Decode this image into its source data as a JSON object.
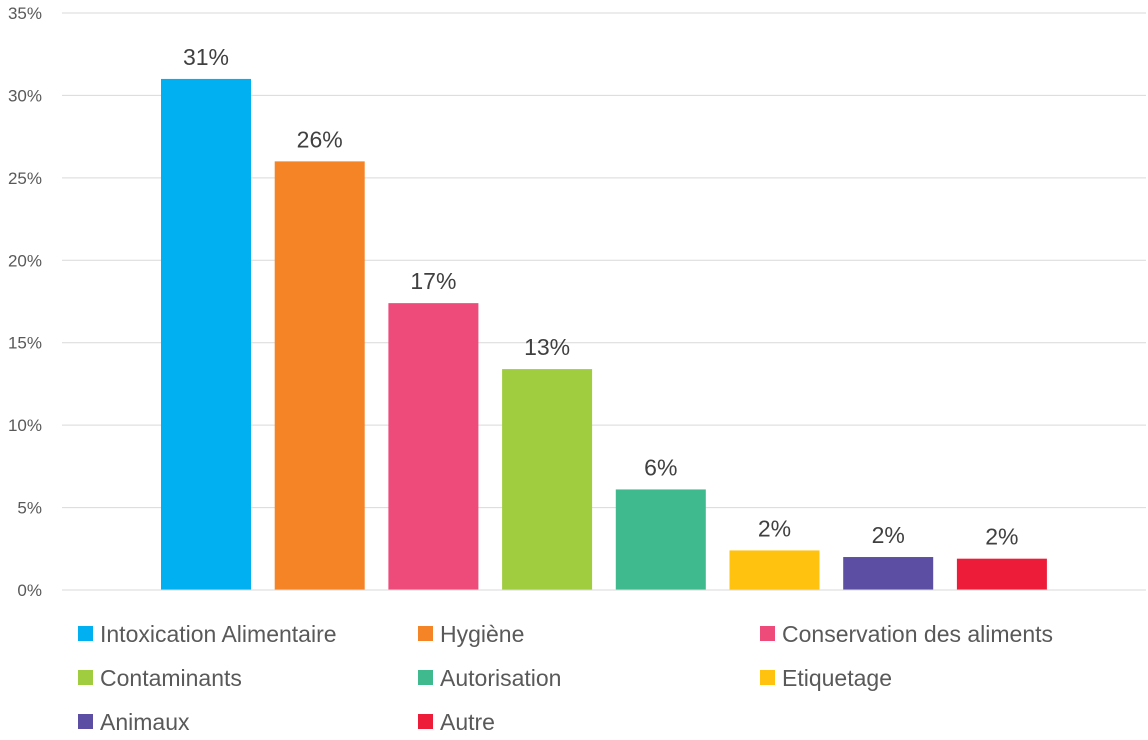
{
  "chart_data": {
    "type": "bar",
    "categories": [
      "Intoxication Alimentaire",
      "Hygiène",
      "Conservation des aliments",
      "Contaminants",
      "Autorisation",
      "Etiquetage",
      "Animaux",
      "Autre"
    ],
    "values": [
      31,
      26,
      17.4,
      13.4,
      6.1,
      2.4,
      2.0,
      1.9
    ],
    "data_labels": [
      "31%",
      "26%",
      "17%",
      "13%",
      "6%",
      "2%",
      "2%",
      "2%"
    ],
    "colors": [
      "#00b0f0",
      "#f58426",
      "#ee4a7a",
      "#a0cd3f",
      "#3fba8e",
      "#ffc20e",
      "#5b4ea3",
      "#ed1c39"
    ],
    "ylim": [
      0,
      35
    ],
    "y_ticks": [
      "0%",
      "5%",
      "10%",
      "15%",
      "20%",
      "25%",
      "30%",
      "35%"
    ],
    "grid": true,
    "legend_position": "bottom",
    "title": "",
    "xlabel": "",
    "ylabel": ""
  }
}
